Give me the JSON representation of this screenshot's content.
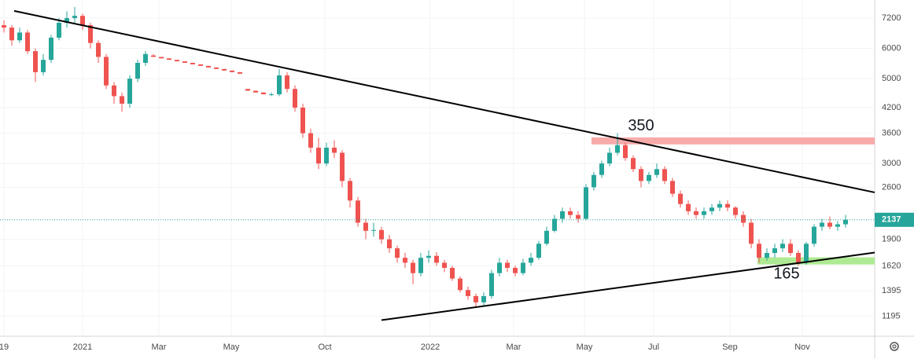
{
  "chart_data": {
    "type": "candlestick",
    "log_scale": true,
    "grid": true,
    "up_color": "#26a69a",
    "down_color": "#ef5350",
    "ylim": [
      1060,
      8030
    ],
    "yticks": [
      1195,
      1395,
      1620,
      1900,
      2600,
      3000,
      3600,
      4200,
      5000,
      6000,
      7200
    ],
    "xlim": [
      0,
      111.2
    ],
    "xticks": [
      {
        "value": 0.5,
        "label": "19"
      },
      {
        "value": 10.5,
        "label": "2021"
      },
      {
        "value": 20.2,
        "label": "Mar"
      },
      {
        "value": 29.4,
        "label": "May"
      },
      {
        "value": 41.3,
        "label": "Oct"
      },
      {
        "value": 54.7,
        "label": "2022"
      },
      {
        "value": 65.3,
        "label": "Mar"
      },
      {
        "value": 74.3,
        "label": "May"
      },
      {
        "value": 83.1,
        "label": "Jul"
      },
      {
        "value": 92.8,
        "label": "Sep"
      },
      {
        "value": 102,
        "label": "Nov"
      }
    ],
    "candles": [
      [
        6900,
        7100,
        6600,
        6800
      ],
      [
        6800,
        6900,
        6100,
        6300
      ],
      [
        6300,
        6800,
        6200,
        6600
      ],
      [
        6600,
        6700,
        5800,
        5900
      ],
      [
        5900,
        6000,
        4900,
        5200
      ],
      [
        5200,
        5800,
        5100,
        5600
      ],
      [
        5600,
        6500,
        5500,
        6400
      ],
      [
        6400,
        7200,
        6300,
        7000
      ],
      [
        7000,
        7500,
        6800,
        7200
      ],
      [
        7200,
        7700,
        7000,
        7300
      ],
      [
        7300,
        7400,
        6700,
        6900
      ],
      [
        6900,
        7000,
        6000,
        6200
      ],
      [
        6200,
        6300,
        5500,
        5700
      ],
      [
        5700,
        5800,
        4700,
        4800
      ],
      [
        4800,
        4900,
        4300,
        4500
      ],
      [
        4500,
        4600,
        4100,
        4300
      ],
      [
        4300,
        5100,
        4200,
        5000
      ],
      [
        5000,
        5600,
        4900,
        5500
      ],
      [
        5500,
        5900,
        5400,
        5800
      ],
      [
        5750,
        5800,
        5700,
        5700
      ],
      [
        5700,
        5700,
        5650,
        5650
      ],
      [
        5650,
        5650,
        5600,
        5600
      ],
      [
        5600,
        5600,
        5550,
        5550
      ],
      [
        5550,
        5550,
        5500,
        5500
      ],
      [
        5500,
        5500,
        5450,
        5450
      ],
      [
        5450,
        5450,
        5400,
        5400
      ],
      [
        5400,
        5400,
        5350,
        5350
      ],
      [
        5350,
        5350,
        5300,
        5300
      ],
      [
        5300,
        5300,
        5250,
        5250
      ],
      [
        5250,
        5250,
        5200,
        5200
      ],
      [
        5200,
        5200,
        5150,
        5150
      ],
      [
        4700,
        4700,
        4650,
        4650
      ],
      [
        4650,
        4650,
        4600,
        4600
      ],
      [
        4600,
        4600,
        4550,
        4550
      ],
      [
        4550,
        4600,
        4500,
        4550
      ],
      [
        4550,
        5300,
        4500,
        5100
      ],
      [
        5100,
        5200,
        4600,
        4700
      ],
      [
        4700,
        4800,
        4100,
        4200
      ],
      [
        4200,
        4300,
        3500,
        3600
      ],
      [
        3600,
        3700,
        3200,
        3300
      ],
      [
        3300,
        3500,
        2900,
        3000
      ],
      [
        3000,
        3400,
        2950,
        3300
      ],
      [
        3300,
        3450,
        3100,
        3200
      ],
      [
        3200,
        3250,
        2600,
        2700
      ],
      [
        2700,
        2750,
        2300,
        2400
      ],
      [
        2400,
        2450,
        2050,
        2100
      ],
      [
        2100,
        2150,
        1900,
        2000
      ],
      [
        2000,
        2100,
        1930,
        2010
      ],
      [
        2010,
        2050,
        1850,
        1900
      ],
      [
        1900,
        1950,
        1750,
        1800
      ],
      [
        1800,
        1830,
        1650,
        1700
      ],
      [
        1700,
        1750,
        1600,
        1650
      ],
      [
        1650,
        1680,
        1450,
        1550
      ],
      [
        1550,
        1750,
        1520,
        1700
      ],
      [
        1700,
        1780,
        1650,
        1720
      ],
      [
        1720,
        1760,
        1620,
        1650
      ],
      [
        1650,
        1680,
        1560,
        1600
      ],
      [
        1600,
        1620,
        1480,
        1500
      ],
      [
        1500,
        1520,
        1380,
        1400
      ],
      [
        1400,
        1430,
        1320,
        1350
      ],
      [
        1350,
        1370,
        1260,
        1300
      ],
      [
        1300,
        1380,
        1270,
        1350
      ],
      [
        1350,
        1580,
        1330,
        1550
      ],
      [
        1550,
        1700,
        1520,
        1650
      ],
      [
        1650,
        1680,
        1560,
        1600
      ],
      [
        1600,
        1620,
        1520,
        1550
      ],
      [
        1550,
        1690,
        1530,
        1650
      ],
      [
        1650,
        1750,
        1620,
        1700
      ],
      [
        1700,
        1880,
        1680,
        1850
      ],
      [
        1850,
        2050,
        1830,
        2000
      ],
      [
        2000,
        2200,
        1980,
        2150
      ],
      [
        2150,
        2300,
        2100,
        2250
      ],
      [
        2250,
        2300,
        2150,
        2200
      ],
      [
        2200,
        2250,
        2100,
        2150
      ],
      [
        2150,
        2650,
        2130,
        2600
      ],
      [
        2600,
        2850,
        2550,
        2800
      ],
      [
        2800,
        3050,
        2750,
        3000
      ],
      [
        3000,
        3300,
        2950,
        3200
      ],
      [
        3200,
        3600,
        3150,
        3350
      ],
      [
        3350,
        3400,
        3050,
        3100
      ],
      [
        3100,
        3150,
        2850,
        2900
      ],
      [
        2900,
        2950,
        2600,
        2700
      ],
      [
        2700,
        2850,
        2650,
        2800
      ],
      [
        2800,
        3000,
        2750,
        2900
      ],
      [
        2900,
        2950,
        2650,
        2700
      ],
      [
        2700,
        2750,
        2450,
        2500
      ],
      [
        2500,
        2550,
        2300,
        2350
      ],
      [
        2350,
        2400,
        2200,
        2250
      ],
      [
        2250,
        2300,
        2150,
        2200
      ],
      [
        2200,
        2300,
        2150,
        2250
      ],
      [
        2250,
        2350,
        2200,
        2300
      ],
      [
        2300,
        2400,
        2250,
        2350
      ],
      [
        2350,
        2400,
        2250,
        2300
      ],
      [
        2300,
        2320,
        2150,
        2200
      ],
      [
        2200,
        2250,
        2050,
        2100
      ],
      [
        2100,
        2150,
        1800,
        1850
      ],
      [
        1850,
        1900,
        1650,
        1700
      ],
      [
        1700,
        1800,
        1670,
        1750
      ],
      [
        1750,
        1850,
        1700,
        1800
      ],
      [
        1800,
        1900,
        1760,
        1850
      ],
      [
        1850,
        1900,
        1720,
        1750
      ],
      [
        1750,
        1780,
        1620,
        1650
      ],
      [
        1650,
        1870,
        1630,
        1850
      ],
      [
        1850,
        2080,
        1820,
        2050
      ],
      [
        2050,
        2150,
        2000,
        2100
      ],
      [
        2100,
        2180,
        2020,
        2050
      ],
      [
        2050,
        2120,
        2000,
        2080
      ],
      [
        2080,
        2200,
        2040,
        2137
      ]
    ],
    "last_price_color": "#26a69a",
    "zones": [
      {
        "x": [
          75.2,
          111.2
        ],
        "y": [
          3365,
          3510
        ],
        "color": "#f7a1a1"
      },
      {
        "x": [
          96.3,
          111.2
        ],
        "y": [
          1633,
          1705
        ],
        "color": "#a5e887"
      }
    ],
    "trendlines": [
      {
        "x": [
          1.8,
          111.2
        ],
        "y": [
          7520,
          2520
        ],
        "color": "#000000"
      },
      {
        "x": [
          48.5,
          111.2
        ],
        "y": [
          1168,
          1754
        ],
        "color": "#000000"
      }
    ],
    "annotations": [
      {
        "text": "350",
        "x": 81.5,
        "y": 3750
      },
      {
        "text": "165",
        "x": 100,
        "y": 1540
      }
    ]
  }
}
